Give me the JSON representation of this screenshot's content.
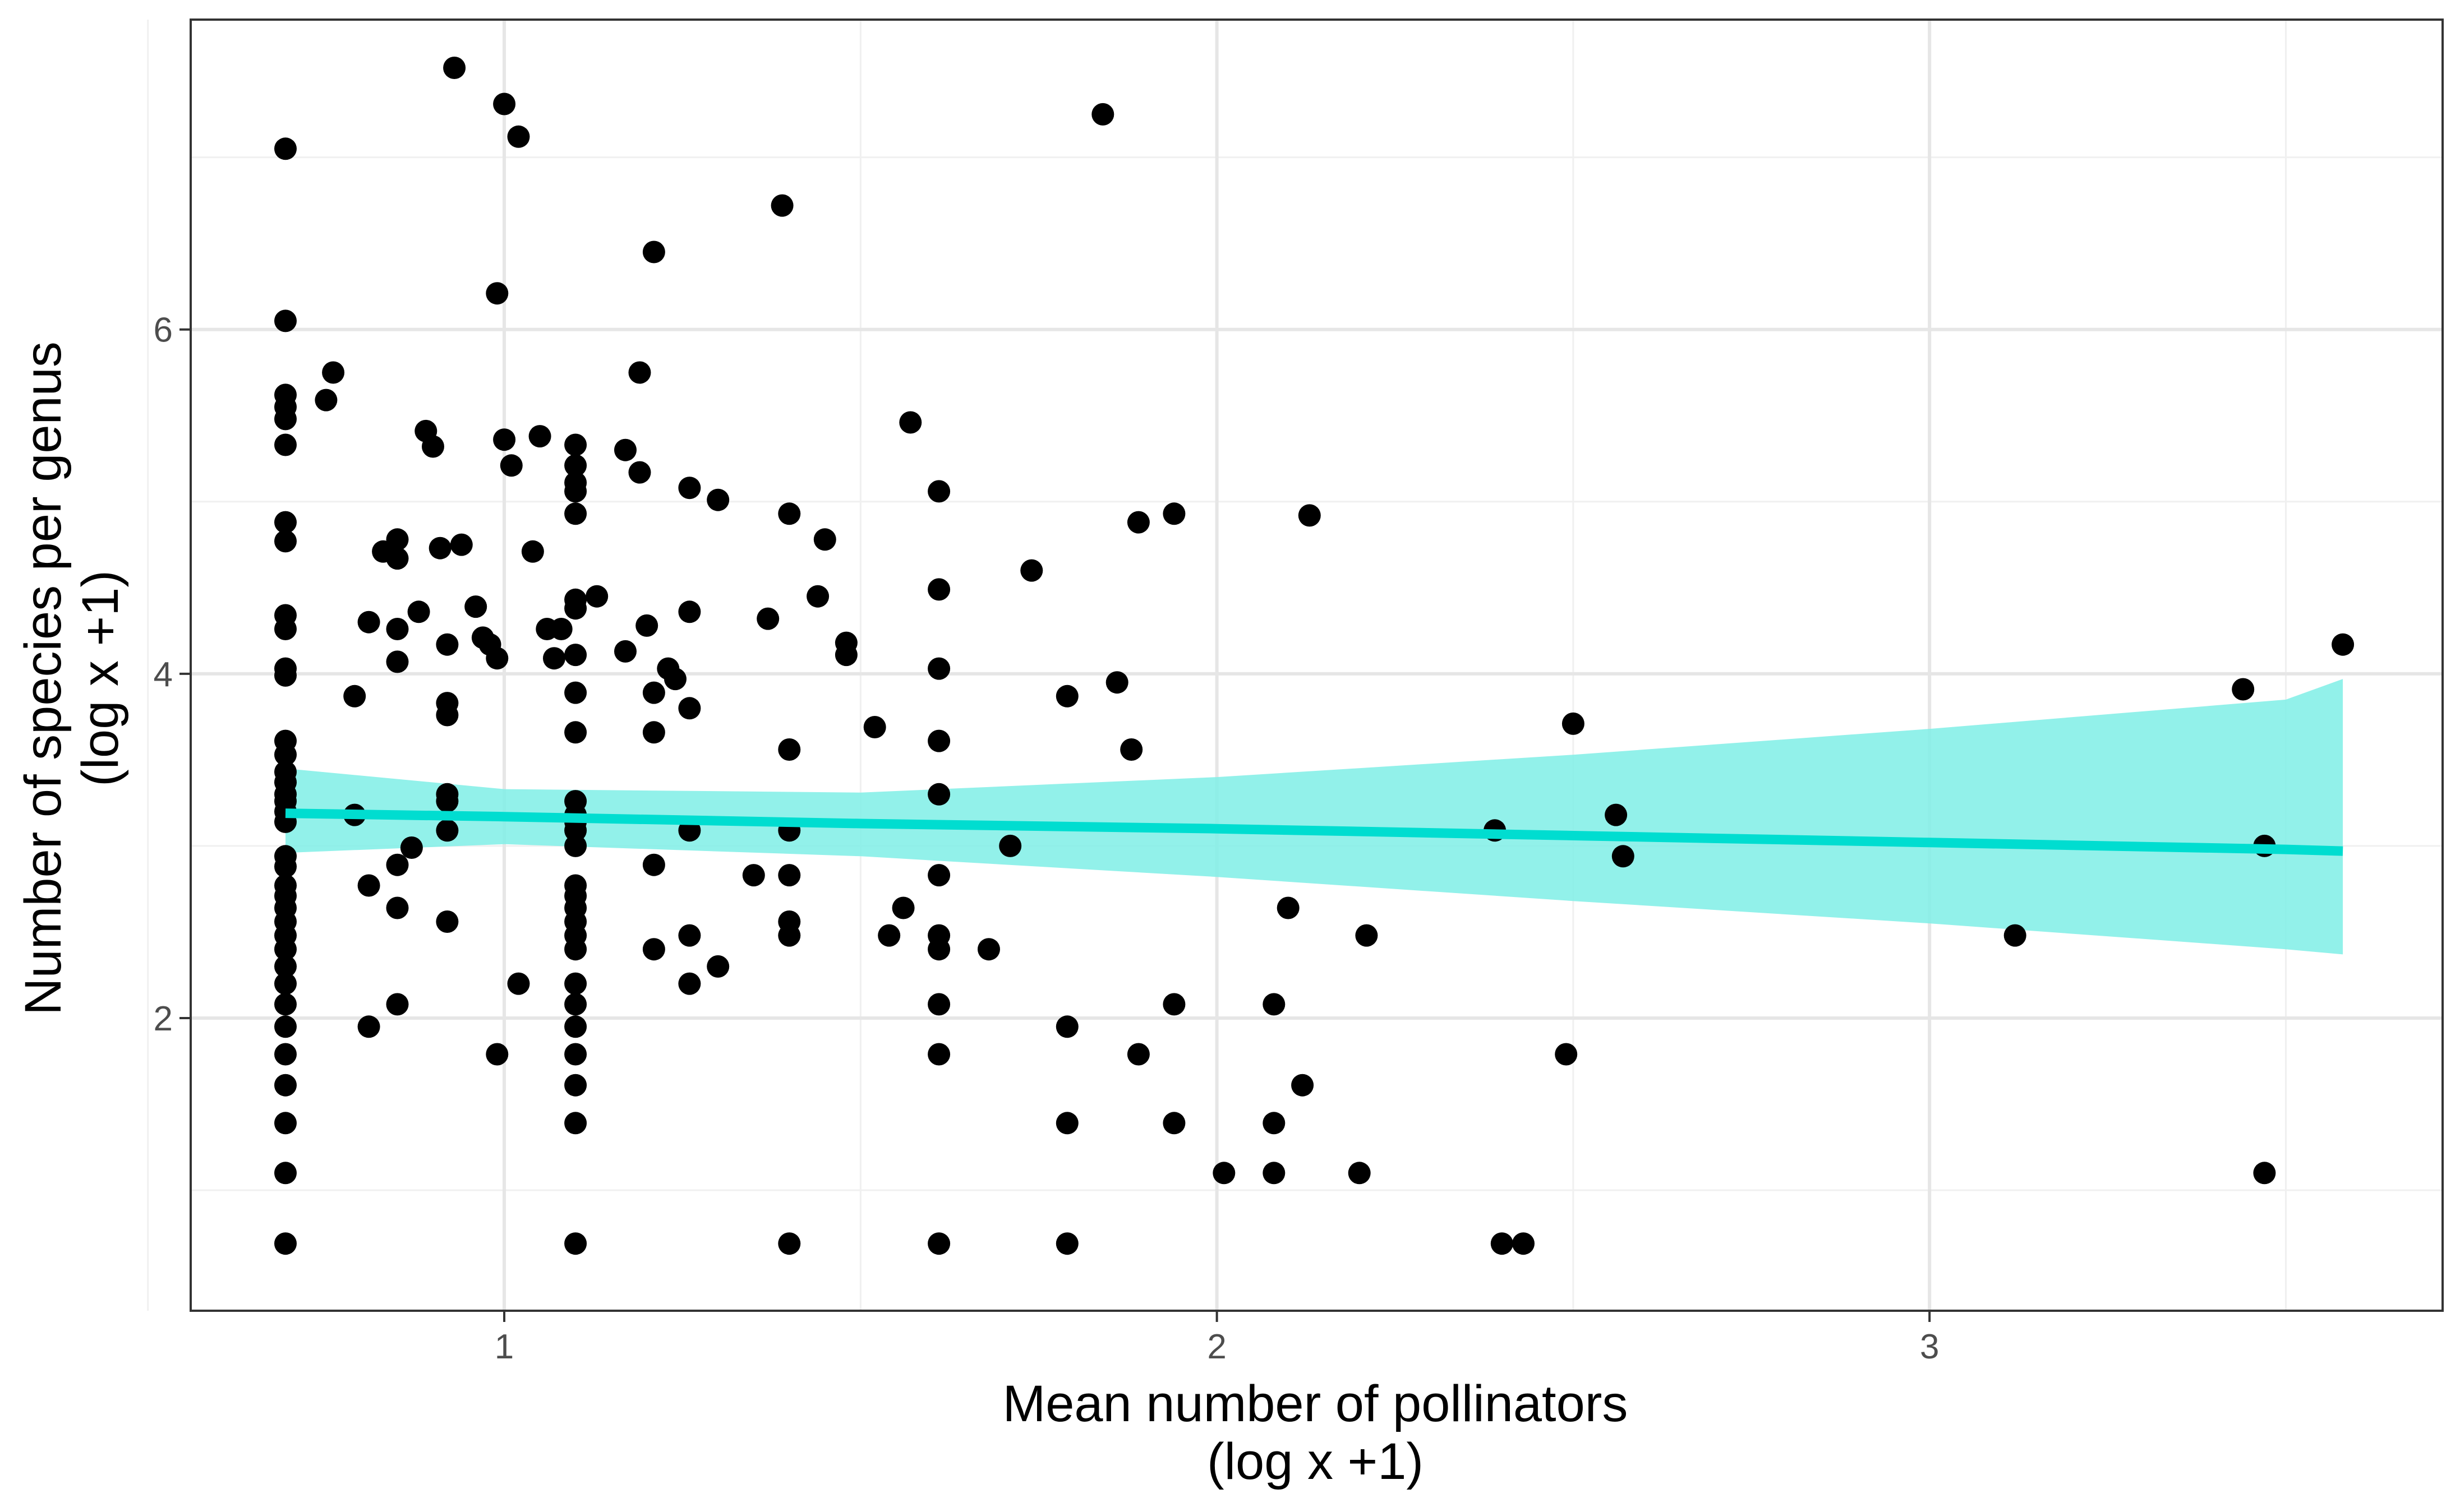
{
  "chart_data": {
    "type": "scatter",
    "title": "",
    "xlabel": [
      "Mean number of pollinators",
      "(log x +1)"
    ],
    "ylabel": [
      "Number of species per genus",
      "(log x +1)"
    ],
    "xlim": [
      0.56,
      3.72
    ],
    "ylim": [
      0.3,
      7.8
    ],
    "x_ticks": [
      1,
      2,
      3
    ],
    "y_ticks": [
      2,
      4,
      6
    ],
    "x_tick_labels": [
      "1",
      "2",
      "3"
    ],
    "y_tick_labels": [
      "2",
      "4",
      "6"
    ],
    "x_minor": [
      0.5,
      1.5,
      2.5,
      3.5
    ],
    "y_minor": [
      1,
      3,
      5,
      7
    ],
    "grid": true,
    "colors": {
      "points": "#000000",
      "fit_line": "#00DDD0",
      "ribbon": "#7FEEE6",
      "panel_border": "#333333"
    },
    "fit": {
      "x": [
        0.693,
        1.0,
        1.5,
        2.0,
        2.5,
        3.0,
        3.5,
        3.58
      ],
      "y": [
        3.19,
        3.17,
        3.13,
        3.1,
        3.06,
        3.02,
        2.98,
        2.97
      ],
      "lower": [
        2.96,
        3.01,
        2.94,
        2.82,
        2.68,
        2.55,
        2.4,
        2.37
      ],
      "upper": [
        3.45,
        3.33,
        3.31,
        3.4,
        3.53,
        3.68,
        3.85,
        3.97
      ]
    },
    "points": [
      [
        0.693,
        7.05
      ],
      [
        0.693,
        6.05
      ],
      [
        0.693,
        5.62
      ],
      [
        0.693,
        5.55
      ],
      [
        0.693,
        5.48
      ],
      [
        0.693,
        5.33
      ],
      [
        0.693,
        4.88
      ],
      [
        0.693,
        4.77
      ],
      [
        0.693,
        4.34
      ],
      [
        0.693,
        4.26
      ],
      [
        0.693,
        4.03
      ],
      [
        0.693,
        3.99
      ],
      [
        0.693,
        3.61
      ],
      [
        0.693,
        3.53
      ],
      [
        0.693,
        3.43
      ],
      [
        0.693,
        3.37
      ],
      [
        0.693,
        3.3
      ],
      [
        0.693,
        3.26
      ],
      [
        0.693,
        3.2
      ],
      [
        0.693,
        3.14
      ],
      [
        0.693,
        2.94
      ],
      [
        0.693,
        2.88
      ],
      [
        0.693,
        2.77
      ],
      [
        0.693,
        2.71
      ],
      [
        0.693,
        2.64
      ],
      [
        0.693,
        2.56
      ],
      [
        0.693,
        2.48
      ],
      [
        0.693,
        2.4
      ],
      [
        0.693,
        2.3
      ],
      [
        0.693,
        2.2
      ],
      [
        0.693,
        2.08
      ],
      [
        0.693,
        1.95
      ],
      [
        0.693,
        1.79
      ],
      [
        0.693,
        1.61
      ],
      [
        0.693,
        1.39
      ],
      [
        0.693,
        1.1
      ],
      [
        0.693,
        0.69
      ],
      [
        0.79,
        3.87
      ],
      [
        0.79,
        3.18
      ],
      [
        0.76,
        5.75
      ],
      [
        0.75,
        5.59
      ],
      [
        0.81,
        4.3
      ],
      [
        0.81,
        2.77
      ],
      [
        0.81,
        1.95
      ],
      [
        0.83,
        4.71
      ],
      [
        0.85,
        4.78
      ],
      [
        0.85,
        4.67
      ],
      [
        0.85,
        4.26
      ],
      [
        0.85,
        4.07
      ],
      [
        0.85,
        2.89
      ],
      [
        0.85,
        2.64
      ],
      [
        0.85,
        2.08
      ],
      [
        0.87,
        2.99
      ],
      [
        0.88,
        4.36
      ],
      [
        0.89,
        5.41
      ],
      [
        0.9,
        5.32
      ],
      [
        0.91,
        4.73
      ],
      [
        0.92,
        3.83
      ],
      [
        0.92,
        3.76
      ],
      [
        0.92,
        3.3
      ],
      [
        0.92,
        3.26
      ],
      [
        0.92,
        3.09
      ],
      [
        0.92,
        4.17
      ],
      [
        0.92,
        2.56
      ],
      [
        0.93,
        7.52
      ],
      [
        0.94,
        4.75
      ],
      [
        0.96,
        4.39
      ],
      [
        0.97,
        4.21
      ],
      [
        0.98,
        4.17
      ],
      [
        0.99,
        6.21
      ],
      [
        0.99,
        4.09
      ],
      [
        0.99,
        1.79
      ],
      [
        1.0,
        7.31
      ],
      [
        1.0,
        5.36
      ],
      [
        1.01,
        5.21
      ],
      [
        1.02,
        7.12
      ],
      [
        1.02,
        2.2
      ],
      [
        1.04,
        4.71
      ],
      [
        1.05,
        5.38
      ],
      [
        1.06,
        4.26
      ],
      [
        1.07,
        4.09
      ],
      [
        1.08,
        4.26
      ],
      [
        1.1,
        5.33
      ],
      [
        1.1,
        5.21
      ],
      [
        1.1,
        5.11
      ],
      [
        1.1,
        5.06
      ],
      [
        1.1,
        4.93
      ],
      [
        1.1,
        4.43
      ],
      [
        1.1,
        4.38
      ],
      [
        1.1,
        4.11
      ],
      [
        1.1,
        3.89
      ],
      [
        1.1,
        3.66
      ],
      [
        1.1,
        3.26
      ],
      [
        1.1,
        3.18
      ],
      [
        1.1,
        3.14
      ],
      [
        1.1,
        3.09
      ],
      [
        1.1,
        3.0
      ],
      [
        1.1,
        2.77
      ],
      [
        1.1,
        2.71
      ],
      [
        1.1,
        2.64
      ],
      [
        1.1,
        2.56
      ],
      [
        1.1,
        2.48
      ],
      [
        1.1,
        2.4
      ],
      [
        1.1,
        2.2
      ],
      [
        1.1,
        2.08
      ],
      [
        1.1,
        1.95
      ],
      [
        1.1,
        1.79
      ],
      [
        1.1,
        1.61
      ],
      [
        1.1,
        1.39
      ],
      [
        1.1,
        0.69
      ],
      [
        1.13,
        4.45
      ],
      [
        1.17,
        5.3
      ],
      [
        1.17,
        4.13
      ],
      [
        1.19,
        5.75
      ],
      [
        1.19,
        5.17
      ],
      [
        1.2,
        4.28
      ],
      [
        1.21,
        6.45
      ],
      [
        1.21,
        3.89
      ],
      [
        1.21,
        3.66
      ],
      [
        1.21,
        2.89
      ],
      [
        1.21,
        2.4
      ],
      [
        1.23,
        4.03
      ],
      [
        1.24,
        3.97
      ],
      [
        1.26,
        5.08
      ],
      [
        1.26,
        4.36
      ],
      [
        1.26,
        3.8
      ],
      [
        1.26,
        3.09
      ],
      [
        1.26,
        2.48
      ],
      [
        1.26,
        2.2
      ],
      [
        1.3,
        5.01
      ],
      [
        1.3,
        2.3
      ],
      [
        1.35,
        2.83
      ],
      [
        1.37,
        4.32
      ],
      [
        1.39,
        6.72
      ],
      [
        1.4,
        4.93
      ],
      [
        1.4,
        3.56
      ],
      [
        1.4,
        3.09
      ],
      [
        1.4,
        2.83
      ],
      [
        1.4,
        2.56
      ],
      [
        1.4,
        2.48
      ],
      [
        1.4,
        0.69
      ],
      [
        1.44,
        4.45
      ],
      [
        1.45,
        4.78
      ],
      [
        1.48,
        4.18
      ],
      [
        1.48,
        4.11
      ],
      [
        1.52,
        3.69
      ],
      [
        1.54,
        2.48
      ],
      [
        1.56,
        2.64
      ],
      [
        1.57,
        5.46
      ],
      [
        1.61,
        5.06
      ],
      [
        1.61,
        4.49
      ],
      [
        1.61,
        4.03
      ],
      [
        1.61,
        3.61
      ],
      [
        1.61,
        3.3
      ],
      [
        1.61,
        2.83
      ],
      [
        1.61,
        2.48
      ],
      [
        1.61,
        2.4
      ],
      [
        1.61,
        2.08
      ],
      [
        1.61,
        1.79
      ],
      [
        1.61,
        0.69
      ],
      [
        1.68,
        2.4
      ],
      [
        1.71,
        3.0
      ],
      [
        1.74,
        4.6
      ],
      [
        1.79,
        3.87
      ],
      [
        1.79,
        1.95
      ],
      [
        1.79,
        1.39
      ],
      [
        1.79,
        0.69
      ],
      [
        1.84,
        7.25
      ],
      [
        1.86,
        3.95
      ],
      [
        1.88,
        3.56
      ],
      [
        1.89,
        4.88
      ],
      [
        1.89,
        1.79
      ],
      [
        1.94,
        4.93
      ],
      [
        1.94,
        2.08
      ],
      [
        1.94,
        1.39
      ],
      [
        2.01,
        1.1
      ],
      [
        2.08,
        2.08
      ],
      [
        2.08,
        1.39
      ],
      [
        2.08,
        1.1
      ],
      [
        2.1,
        2.64
      ],
      [
        2.12,
        1.61
      ],
      [
        2.13,
        4.92
      ],
      [
        2.2,
        1.1
      ],
      [
        2.21,
        2.48
      ],
      [
        2.39,
        3.09
      ],
      [
        2.4,
        0.69
      ],
      [
        2.43,
        0.69
      ],
      [
        2.49,
        1.79
      ],
      [
        2.5,
        3.71
      ],
      [
        2.56,
        3.18
      ],
      [
        2.57,
        2.94
      ],
      [
        3.12,
        2.48
      ],
      [
        3.44,
        3.91
      ],
      [
        3.47,
        3.0
      ],
      [
        3.47,
        1.1
      ],
      [
        3.58,
        4.17
      ]
    ]
  }
}
